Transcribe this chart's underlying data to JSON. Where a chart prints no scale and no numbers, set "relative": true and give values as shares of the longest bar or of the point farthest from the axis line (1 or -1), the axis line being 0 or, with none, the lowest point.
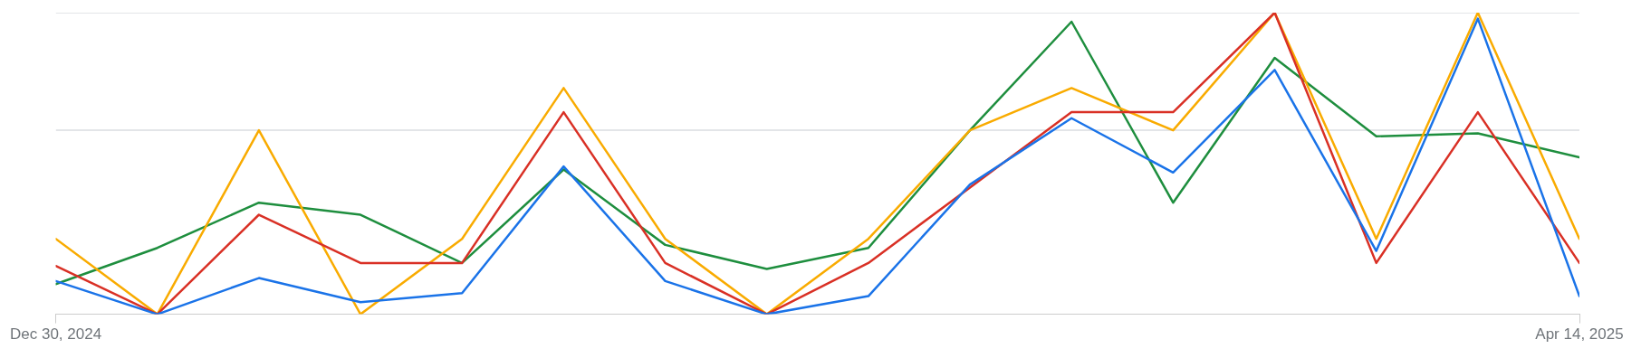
{
  "chart_data": {
    "type": "line",
    "relative": true,
    "legend": false,
    "ref_lines": [
      {
        "axis": "y",
        "value": 1,
        "color": "#dadce0"
      },
      {
        "axis": "y",
        "value": 0.61,
        "color": "#dadce0"
      }
    ],
    "marker": "none",
    "line_style": "solid",
    "x": [
      "2024-12-30",
      "2025-01-06",
      "2025-01-13",
      "2025-01-20",
      "2025-01-27",
      "2025-02-03",
      "2025-02-10",
      "2025-02-17",
      "2025-02-24",
      "2025-03-03",
      "2025-03-10",
      "2025-03-17",
      "2025-03-24",
      "2025-03-31",
      "2025-04-07",
      "2025-04-14"
    ],
    "xlim": [
      "2024-12-30",
      "2025-04-14"
    ],
    "xticks": [
      {
        "value": "2024-12-30",
        "label": "Dec 30, 2024"
      },
      {
        "value": "2025-04-14",
        "label": "Apr 14, 2025"
      }
    ],
    "series": [
      {
        "color": "#1a73e8",
        "values": [
          0.11,
          0,
          0.12,
          0.04,
          0.07,
          0.49,
          0.11,
          0,
          0.06,
          0.43,
          0.65,
          0.47,
          0.81,
          0.21,
          0.98,
          0.06
        ]
      },
      {
        "color": "#d93025",
        "values": [
          0.16,
          0,
          0.33,
          0.17,
          0.17,
          0.67,
          0.17,
          0,
          0.17,
          0.42,
          0.67,
          0.67,
          1,
          0.17,
          0.67,
          0.17
        ]
      },
      {
        "color": "#f9ab00",
        "values": [
          0.25,
          0,
          0.61,
          0,
          0.25,
          0.75,
          0.25,
          0,
          0.25,
          0.61,
          0.75,
          0.61,
          1,
          0.25,
          1,
          0.25
        ]
      },
      {
        "color": "#1e8e3e",
        "values": [
          0.1,
          0.22,
          0.37,
          0.33,
          0.17,
          0.48,
          0.23,
          0.15,
          0.22,
          0.61,
          0.97,
          0.37,
          0.85,
          0.59,
          0.6,
          0.52
        ]
      }
    ]
  }
}
